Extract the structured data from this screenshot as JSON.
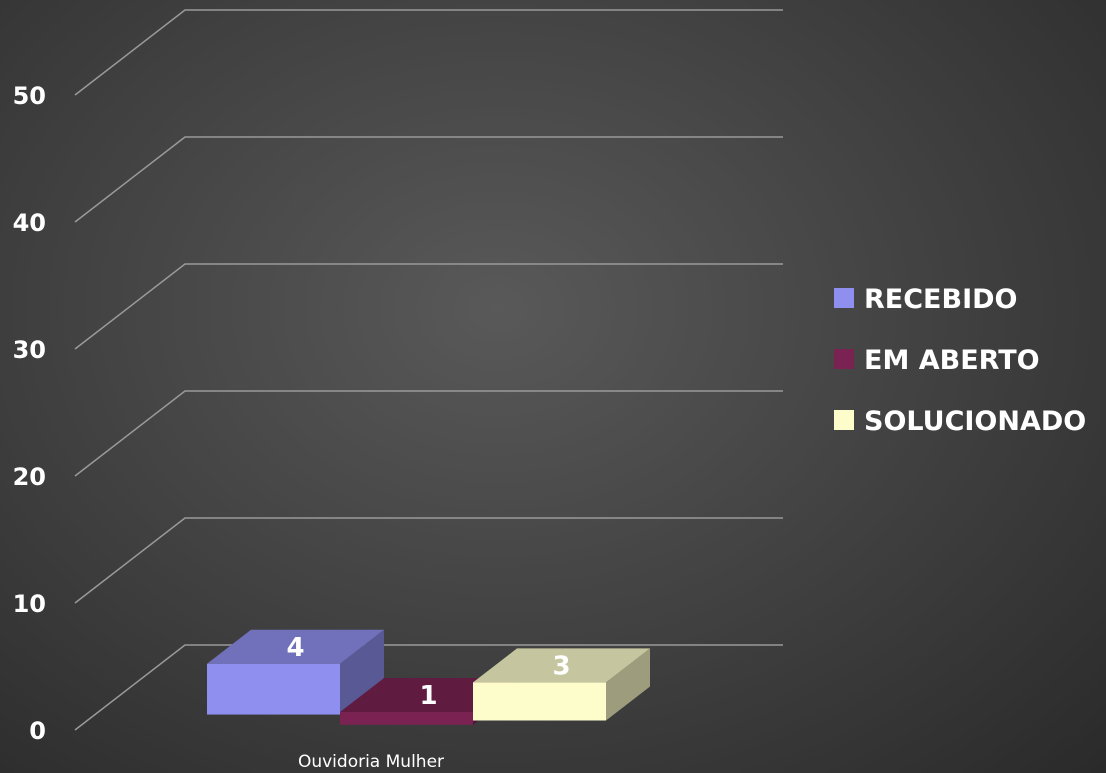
{
  "chart_data": {
    "type": "bar",
    "categories": [
      "Ouvidoria Mulher"
    ],
    "series": [
      {
        "name": "RECEBIDO",
        "values": [
          4
        ],
        "color": "#8f8ff0"
      },
      {
        "name": "EM ABERTO",
        "values": [
          1
        ],
        "color": "#7a2352"
      },
      {
        "name": "SOLUCIONADO",
        "values": [
          3
        ],
        "color": "#fdfdcc"
      }
    ],
    "ylim": [
      0,
      50
    ],
    "yticks": [
      0,
      10,
      20,
      30,
      40,
      50
    ],
    "grid": true,
    "legend_position": "right",
    "style": "3d-clustered-column",
    "title": "",
    "xlabel": "",
    "ylabel": ""
  }
}
